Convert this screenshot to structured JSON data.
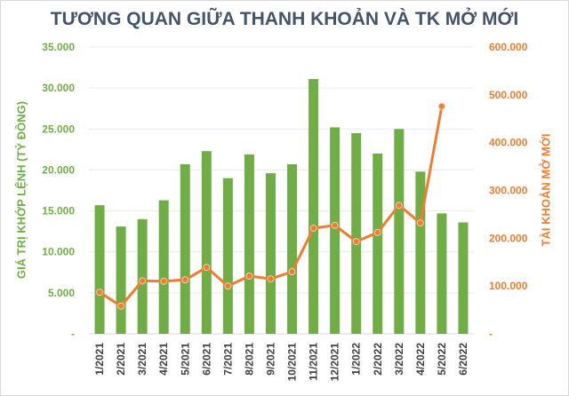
{
  "chart_data": {
    "type": "bar+line",
    "title": "TƯƠNG QUAN GIỮA THANH KHOẢN VÀ TK MỞ MỚI",
    "categories": [
      "1/2021",
      "2/2021",
      "3/2021",
      "4/2021",
      "5/2021",
      "6/2021",
      "7/2021",
      "8/2021",
      "9/2021",
      "10/2021",
      "11/2021",
      "12/2021",
      "1/2022",
      "2/2022",
      "3/2022",
      "4/2022",
      "5/2022",
      "6/2022"
    ],
    "series": [
      {
        "name": "Giá trị khớp lệnh (tỷ đồng)",
        "type": "bar",
        "axis": "left",
        "color": "#70ad47",
        "values": [
          15700,
          13100,
          14000,
          16300,
          20700,
          22300,
          19000,
          21900,
          19600,
          20700,
          31100,
          25200,
          24500,
          22000,
          25000,
          19800,
          14700,
          13600
        ]
      },
      {
        "name": "Tài khoản mở mới",
        "type": "line",
        "axis": "right",
        "color": "#ed7d31",
        "values": [
          87000,
          58000,
          111000,
          110000,
          113000,
          139000,
          100000,
          121000,
          115000,
          130000,
          221000,
          227000,
          193000,
          212000,
          269000,
          232000,
          476000,
          null
        ]
      }
    ],
    "ylabel": "GIÁ TRỊ KHỚP LỆNH (TỶ ĐỒNG)",
    "y2label": "TÀI KHOẢN MỞ MỚI",
    "ylim": [
      0,
      35000
    ],
    "y2lim": [
      0,
      600000
    ],
    "yticks": [
      "-",
      "5.000",
      "10.000",
      "15.000",
      "20.000",
      "25.000",
      "30.000",
      "35.000"
    ],
    "y2ticks": [
      "-",
      "100.000",
      "200.000",
      "300.000",
      "400.000",
      "500.000",
      "600.000"
    ],
    "grid": true
  }
}
